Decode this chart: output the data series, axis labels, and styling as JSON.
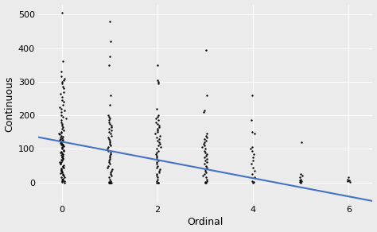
{
  "title": "",
  "xlabel": "Ordinal",
  "ylabel": "Continuous",
  "background_color": "#EBEBEB",
  "grid_color": "#FFFFFF",
  "dot_color": "#000000",
  "dot_size": 3,
  "dot_alpha": 1.0,
  "line_color": "#4472C4",
  "line_width": 1.5,
  "xlim": [
    -0.5,
    6.5
  ],
  "ylim": [
    -60,
    530
  ],
  "yticks": [
    0,
    100,
    200,
    300,
    400,
    500
  ],
  "xticks": [
    0,
    2,
    4,
    6
  ],
  "regression_x0": -0.5,
  "regression_y0": 135,
  "regression_x1": 6.5,
  "regression_y1": -55,
  "jitter_std": 0.025,
  "jitter_data": {
    "0": [
      505,
      360,
      330,
      315,
      310,
      305,
      300,
      295,
      285,
      280,
      270,
      265,
      255,
      245,
      240,
      230,
      225,
      220,
      215,
      210,
      200,
      195,
      190,
      185,
      180,
      175,
      170,
      165,
      160,
      155,
      150,
      148,
      145,
      143,
      140,
      137,
      135,
      132,
      130,
      128,
      126,
      124,
      122,
      120,
      118,
      116,
      114,
      112,
      110,
      108,
      105,
      103,
      100,
      97,
      95,
      92,
      90,
      87,
      85,
      82,
      80,
      77,
      75,
      72,
      70,
      67,
      65,
      62,
      60,
      57,
      55,
      52,
      50,
      47,
      45,
      42,
      40,
      37,
      35,
      32,
      30,
      27,
      25,
      22,
      20,
      17,
      15,
      12,
      10,
      7,
      5,
      3,
      1,
      0
    ],
    "1": [
      480,
      420,
      375,
      350,
      260,
      230,
      200,
      195,
      190,
      185,
      180,
      175,
      170,
      165,
      160,
      155,
      150,
      145,
      140,
      135,
      130,
      125,
      120,
      115,
      110,
      105,
      100,
      95,
      90,
      85,
      80,
      75,
      70,
      65,
      60,
      55,
      50,
      45,
      40,
      35,
      30,
      25,
      20,
      15,
      10,
      5,
      2,
      0,
      0,
      0,
      0,
      0
    ],
    "2": [
      350,
      305,
      300,
      295,
      220,
      200,
      195,
      190,
      185,
      180,
      175,
      170,
      165,
      160,
      155,
      150,
      145,
      140,
      135,
      130,
      125,
      120,
      115,
      110,
      105,
      100,
      95,
      90,
      85,
      80,
      75,
      70,
      65,
      60,
      55,
      50,
      45,
      40,
      35,
      30,
      25,
      20,
      15,
      10,
      5,
      0,
      0,
      0
    ],
    "3": [
      395,
      260,
      215,
      210,
      145,
      140,
      135,
      130,
      125,
      120,
      115,
      110,
      105,
      100,
      95,
      90,
      85,
      80,
      75,
      70,
      65,
      60,
      55,
      50,
      45,
      40,
      35,
      30,
      25,
      20,
      15,
      10,
      5,
      2,
      0,
      0
    ],
    "4": [
      260,
      185,
      150,
      145,
      105,
      100,
      95,
      85,
      75,
      65,
      55,
      45,
      35,
      25,
      15,
      5,
      2,
      0
    ],
    "5": [
      120,
      25,
      20,
      15,
      10,
      7,
      5,
      2,
      0
    ],
    "6": [
      15,
      10,
      7,
      5,
      2
    ]
  }
}
